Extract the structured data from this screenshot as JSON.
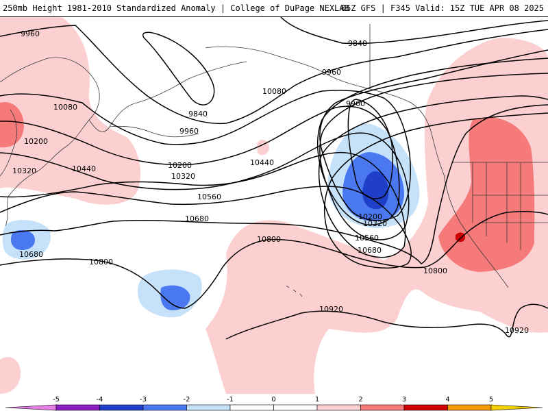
{
  "header": {
    "left_title": "250mb Height 1981-2010 Standardized Anomaly | College of DuPage NEXLAB",
    "right_title": "06Z GFS | F345 Valid: 15Z TUE APR 08 2025"
  },
  "colors": {
    "neg5": "#e67ee6",
    "neg4": "#8a1fc2",
    "neg3": "#1f3fc8",
    "neg2": "#4a78f0",
    "neg1": "#c6e2fb",
    "zero": "#ffffff",
    "pos1": "#fcd0d0",
    "pos2": "#f77a7a",
    "pos3": "#cc0000",
    "pos4": "#f59a00",
    "pos5": "#f5d000",
    "contour": "#000000",
    "coast": "#3a3a3a"
  },
  "contour_labels": [
    {
      "text": "9960",
      "key": "l9960a"
    },
    {
      "text": "10080",
      "key": "l10080a"
    },
    {
      "text": "10200",
      "key": "l10200a"
    },
    {
      "text": "10320",
      "key": "l10320a"
    },
    {
      "text": "10440",
      "key": "l10440a"
    },
    {
      "text": "10680",
      "key": "l10680a"
    },
    {
      "text": "10800",
      "key": "l10800a"
    },
    {
      "text": "9840",
      "key": "l9840a"
    },
    {
      "text": "9960",
      "key": "l9960b"
    },
    {
      "text": "10200",
      "key": "l10200b"
    },
    {
      "text": "10320",
      "key": "l10320b"
    },
    {
      "text": "10440",
      "key": "l10440b"
    },
    {
      "text": "10560",
      "key": "l10560a"
    },
    {
      "text": "10680",
      "key": "l10680b"
    },
    {
      "text": "10080",
      "key": "l10080b"
    },
    {
      "text": "9960",
      "key": "l9960c"
    },
    {
      "text": "9840",
      "key": "l9840b"
    },
    {
      "text": "9960",
      "key": "l9960d"
    },
    {
      "text": "10200",
      "key": "l10200c"
    },
    {
      "text": "10320",
      "key": "l10320c"
    },
    {
      "text": "10560",
      "key": "l10560b"
    },
    {
      "text": "10680",
      "key": "l10680c"
    },
    {
      "text": "10800",
      "key": "l10800b"
    },
    {
      "text": "10800",
      "key": "l10800c"
    },
    {
      "text": "10920",
      "key": "l10920a"
    },
    {
      "text": "10920",
      "key": "l10920b"
    }
  ],
  "legend": {
    "ticks": [
      "-5",
      "-4",
      "-3",
      "-2",
      "-1",
      "0",
      "1",
      "2",
      "3",
      "4",
      "5"
    ]
  }
}
